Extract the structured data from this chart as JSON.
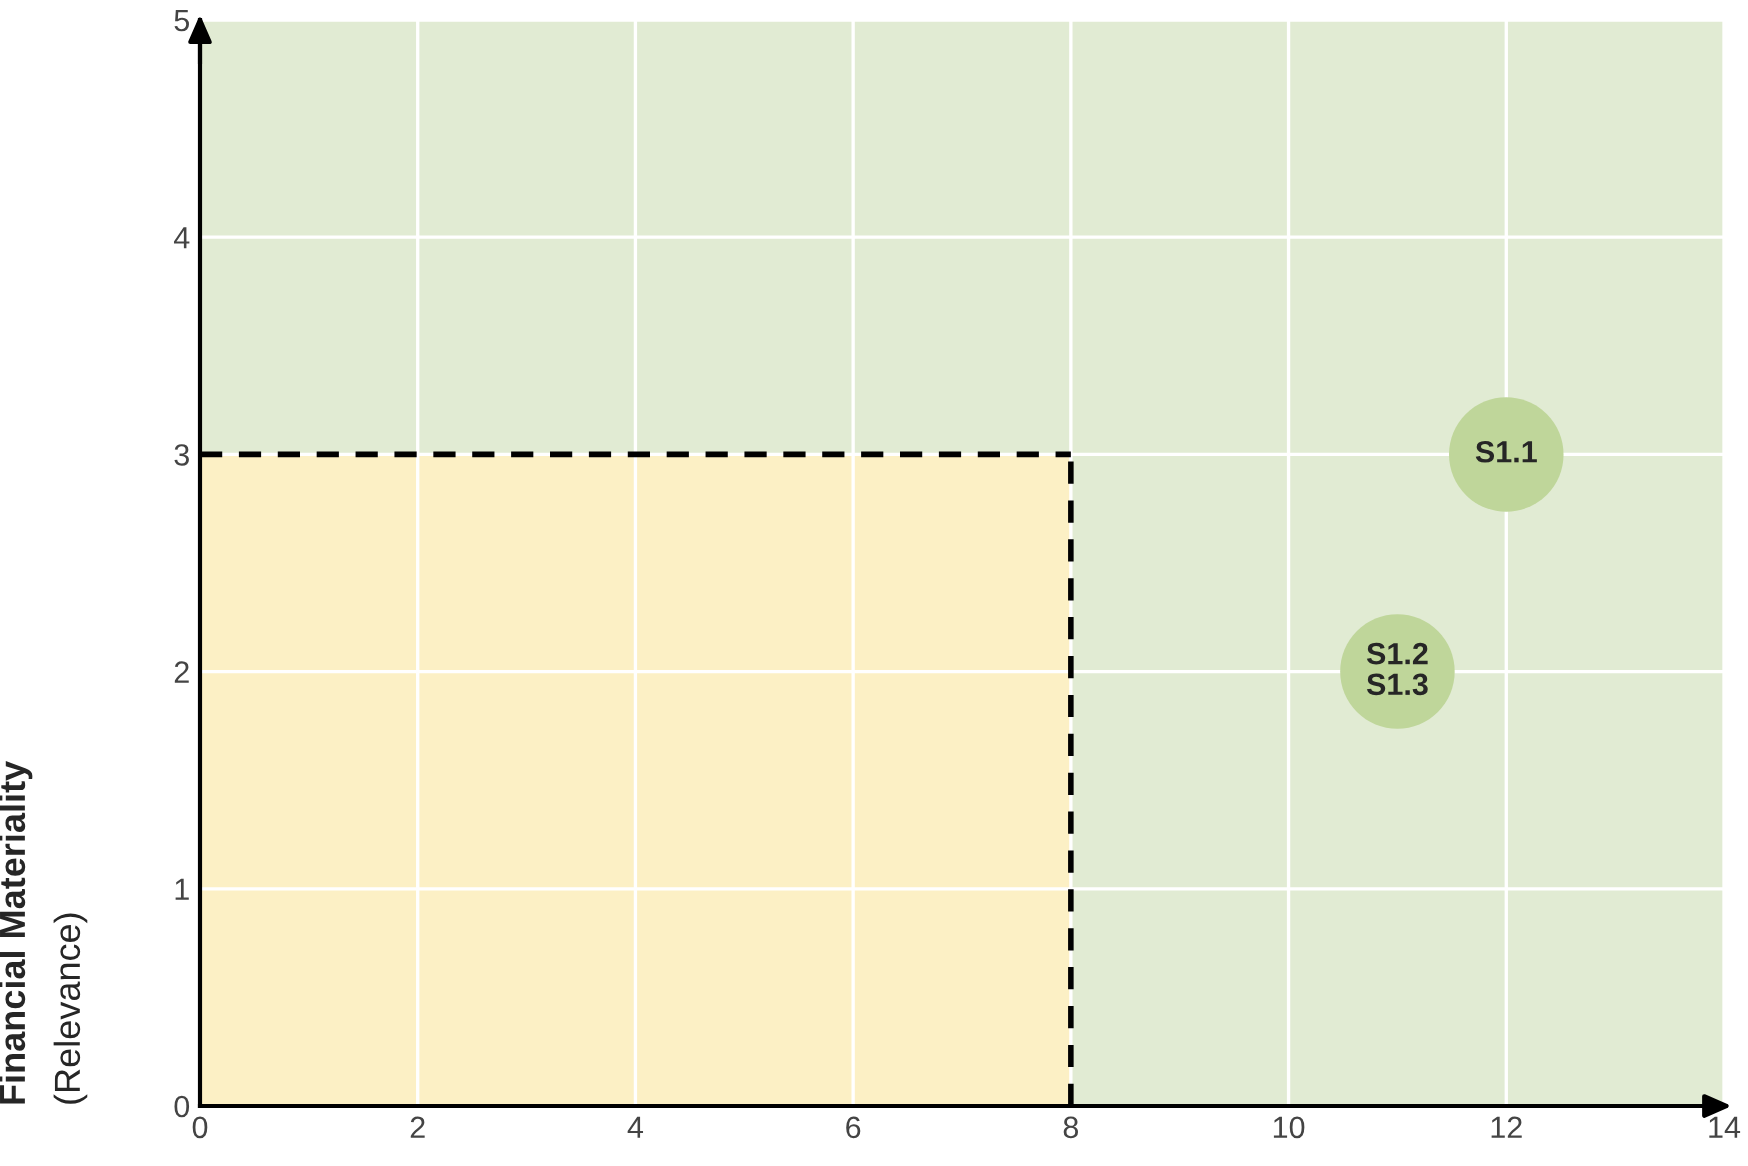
{
  "chart_data": {
    "type": "scatter",
    "ylabel": "Financial Materiality",
    "x": [
      12,
      11
    ],
    "series": [
      {
        "color": "#bfd69a",
        "values": [
          3,
          2
        ]
      }
    ],
    "xlim": [
      0,
      14
    ],
    "ylim": [
      0,
      5
    ],
    "xticks": [
      0,
      2,
      4,
      6,
      8,
      10,
      12,
      14
    ],
    "yticks": [
      0,
      1,
      2,
      3,
      4,
      5
    ],
    "grid": true,
    "marker": "circle",
    "bands": [
      {
        "axis": "x",
        "from": 0,
        "to": 8,
        "color": "#fcf0c5"
      }
    ],
    "ref_lines": [
      {
        "axis": "x",
        "value": 8,
        "line_style": "dashed",
        "color": "#000000"
      },
      {
        "axis": "y",
        "value": 3,
        "line_style": "dashed",
        "color": "#000000"
      }
    ],
    "annotations": [
      "(Relevance)",
      {
        "text": "S1.1",
        "x": 12,
        "y": 3
      },
      {
        "text": "S1.2\nS1.3",
        "x": 11,
        "y": 2
      }
    ]
  }
}
